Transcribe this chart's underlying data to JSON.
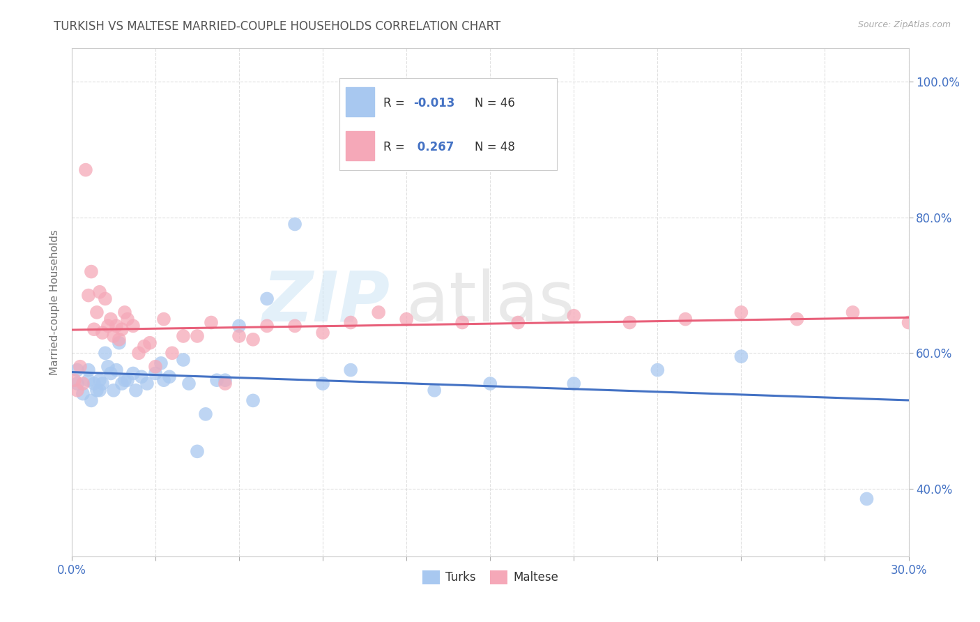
{
  "title": "TURKISH VS MALTESE MARRIED-COUPLE HOUSEHOLDS CORRELATION CHART",
  "source": "Source: ZipAtlas.com",
  "ylabel": "Married-couple Households",
  "turks_R": -0.013,
  "turks_N": 46,
  "maltese_R": 0.267,
  "maltese_N": 48,
  "turks_color": "#a8c8f0",
  "maltese_color": "#f5a8b8",
  "turks_line_color": "#4472c4",
  "maltese_line_color": "#e8607a",
  "r_value_color": "#4472c4",
  "ytick_labels": [
    "40.0%",
    "60.0%",
    "80.0%",
    "100.0%"
  ],
  "ytick_values": [
    0.4,
    0.6,
    0.8,
    1.0
  ],
  "xmin": 0.0,
  "xmax": 0.3,
  "ymin": 0.3,
  "ymax": 1.05,
  "turks_x": [
    0.002,
    0.002,
    0.004,
    0.006,
    0.006,
    0.007,
    0.008,
    0.009,
    0.01,
    0.01,
    0.011,
    0.012,
    0.013,
    0.014,
    0.015,
    0.016,
    0.017,
    0.018,
    0.019,
    0.02,
    0.022,
    0.023,
    0.025,
    0.027,
    0.03,
    0.032,
    0.033,
    0.035,
    0.04,
    0.042,
    0.045,
    0.048,
    0.052,
    0.055,
    0.06,
    0.065,
    0.07,
    0.08,
    0.09,
    0.1,
    0.13,
    0.15,
    0.18,
    0.21,
    0.24,
    0.285
  ],
  "turks_y": [
    0.555,
    0.575,
    0.54,
    0.56,
    0.575,
    0.53,
    0.555,
    0.545,
    0.545,
    0.56,
    0.555,
    0.6,
    0.58,
    0.57,
    0.545,
    0.575,
    0.615,
    0.555,
    0.56,
    0.56,
    0.57,
    0.545,
    0.565,
    0.555,
    0.57,
    0.585,
    0.56,
    0.565,
    0.59,
    0.555,
    0.455,
    0.51,
    0.56,
    0.56,
    0.64,
    0.53,
    0.68,
    0.79,
    0.555,
    0.575,
    0.545,
    0.555,
    0.555,
    0.575,
    0.595,
    0.385
  ],
  "maltese_x": [
    0.001,
    0.002,
    0.003,
    0.004,
    0.005,
    0.006,
    0.007,
    0.008,
    0.009,
    0.01,
    0.011,
    0.012,
    0.013,
    0.014,
    0.015,
    0.016,
    0.017,
    0.018,
    0.019,
    0.02,
    0.022,
    0.024,
    0.026,
    0.028,
    0.03,
    0.033,
    0.036,
    0.04,
    0.045,
    0.05,
    0.055,
    0.06,
    0.065,
    0.07,
    0.08,
    0.09,
    0.1,
    0.11,
    0.12,
    0.14,
    0.16,
    0.18,
    0.2,
    0.22,
    0.24,
    0.26,
    0.28,
    0.3
  ],
  "maltese_y": [
    0.56,
    0.545,
    0.58,
    0.555,
    0.87,
    0.685,
    0.72,
    0.635,
    0.66,
    0.69,
    0.63,
    0.68,
    0.64,
    0.65,
    0.625,
    0.64,
    0.62,
    0.635,
    0.66,
    0.65,
    0.64,
    0.6,
    0.61,
    0.615,
    0.58,
    0.65,
    0.6,
    0.625,
    0.625,
    0.645,
    0.555,
    0.625,
    0.62,
    0.64,
    0.64,
    0.63,
    0.645,
    0.66,
    0.65,
    0.645,
    0.645,
    0.655,
    0.645,
    0.65,
    0.66,
    0.65,
    0.66,
    0.645
  ]
}
